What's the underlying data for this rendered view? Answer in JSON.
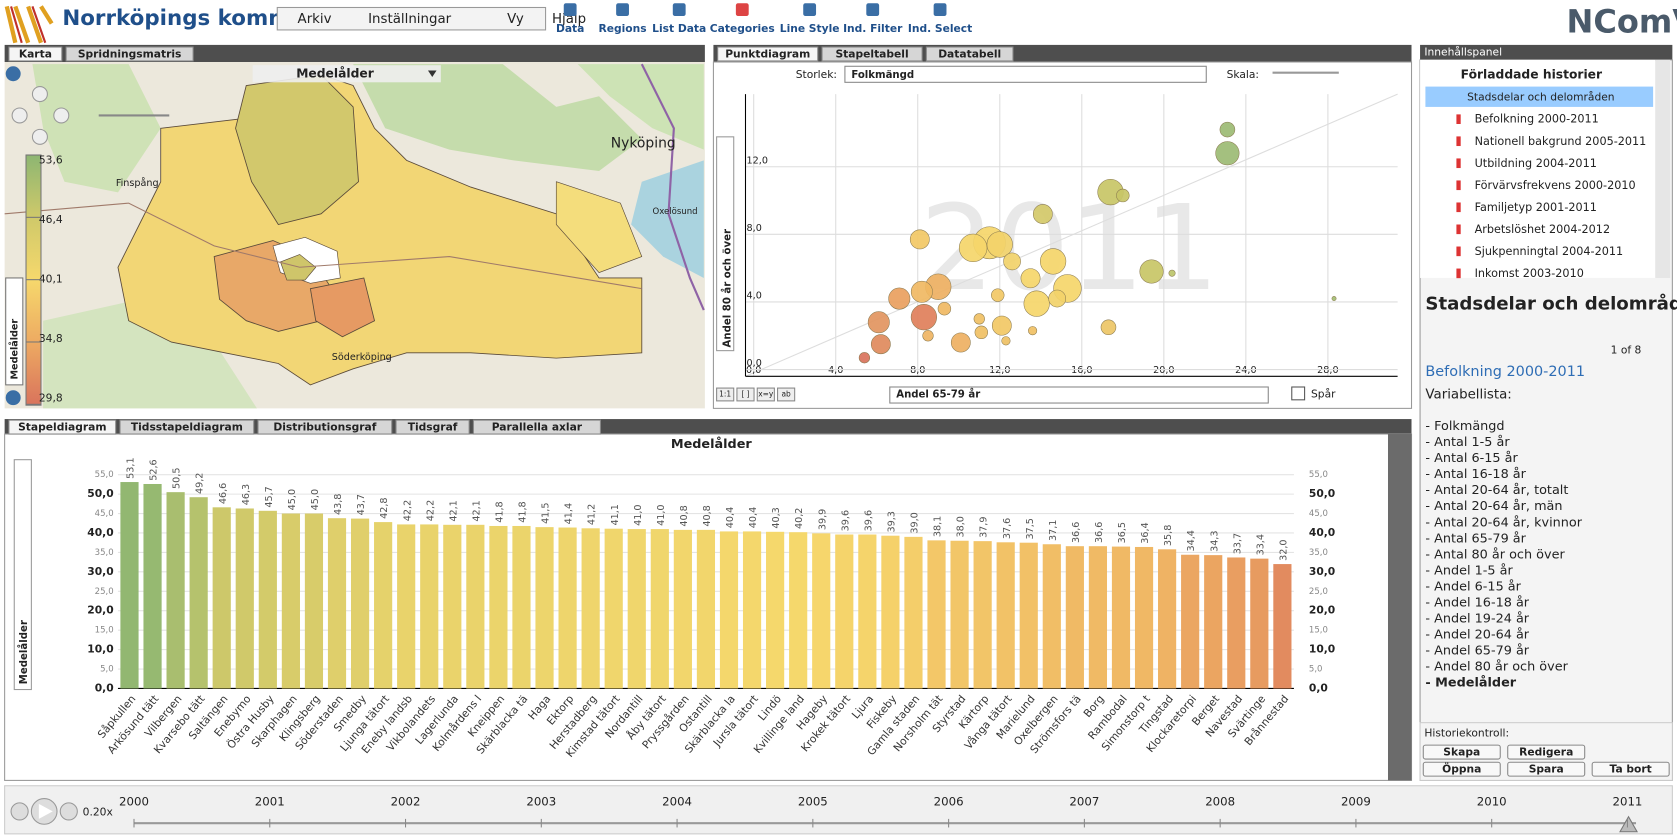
{
  "header": {
    "title": "Norrköpings kommun",
    "menu": [
      "Arkiv",
      "Inställningar",
      "Vy",
      "Hjälp"
    ],
    "toolbar": [
      "Data",
      "Regions",
      "List Data",
      "Categories",
      "Line Style",
      "Ind. Filter",
      "Ind. Select"
    ],
    "logo": "NComVA"
  },
  "map_panel": {
    "tabs": [
      "Karta",
      "Spridningsmatris"
    ],
    "variable": "Medelålder",
    "legend_title": "Medelålder",
    "places": [
      "Nyköping",
      "Finspång",
      "Oxelösund",
      "Söderköping"
    ],
    "legend": [
      {
        "value": 53.6,
        "label": "53,6",
        "color": "#8db672"
      },
      {
        "value": 46.4,
        "label": "46,4",
        "color": "#cfc96a"
      },
      {
        "value": 40.1,
        "label": "40,1",
        "color": "#f6d86c"
      },
      {
        "value": 34.8,
        "label": "34,8",
        "color": "#edaa62"
      },
      {
        "value": 29.8,
        "label": "29,8",
        "color": "#d9735c"
      }
    ]
  },
  "scatter_panel": {
    "tabs": [
      "Punktdiagram",
      "Stapeltabell",
      "Datatabell"
    ],
    "size_label": "Storlek:",
    "size_variable": "Folkmängd",
    "scale_label": "Skala:",
    "watermark": "2011",
    "trace_label": "Spår",
    "buttons": [
      "1:1",
      "[ ]",
      "x=y",
      "ab"
    ]
  },
  "bar_panel": {
    "tabs": [
      "Stapeldiagram",
      "Tidsstapeldiagram",
      "Distributionsgraf",
      "Tidsgraf",
      "Parallella axlar"
    ],
    "side_label": "Medelålder"
  },
  "chart_data": [
    {
      "type": "scatter",
      "x_label": "Andel 65-79 år",
      "y_label": "Andel 80 år och över",
      "xlim": [
        -0.4,
        31.4
      ],
      "ylim": [
        -0.4,
        16.3
      ],
      "xticks": [
        {
          "value": 0,
          "label": "0,0"
        },
        {
          "value": 4,
          "label": "4,0"
        },
        {
          "value": 8,
          "label": "8,0"
        },
        {
          "value": 12,
          "label": "12,0"
        },
        {
          "value": 16,
          "label": "16,0"
        },
        {
          "value": 20,
          "label": "20,0"
        },
        {
          "value": 24,
          "label": "24,0"
        },
        {
          "value": 28,
          "label": "28,0"
        }
      ],
      "yticks": [
        {
          "value": 0,
          "label": "0,0"
        },
        {
          "value": 4,
          "label": "4,0"
        },
        {
          "value": 8,
          "label": "8,0"
        },
        {
          "value": 12,
          "label": "12,0"
        }
      ],
      "grid": true,
      "x": [
        23.1,
        23.1,
        17.4,
        18.0,
        19.4,
        20.4,
        28.3,
        14.1,
        11.5,
        10.7,
        12.0,
        14.6,
        13.5,
        12.6,
        15.3,
        13.8,
        14.8,
        17.3,
        12.1,
        11.9,
        8.1,
        9.0,
        8.2,
        7.1,
        9.3,
        8.3,
        6.1,
        6.2,
        10.1,
        8.5,
        11.0,
        11.1,
        5.4,
        13.6,
        12.3
      ],
      "y": [
        14.2,
        12.8,
        10.5,
        10.3,
        5.8,
        5.7,
        4.2,
        9.2,
        7.5,
        7.2,
        7.4,
        6.4,
        5.4,
        6.4,
        4.8,
        3.9,
        4.2,
        2.5,
        2.6,
        4.4,
        7.7,
        4.9,
        4.6,
        4.2,
        3.6,
        3.1,
        2.8,
        1.5,
        1.6,
        2.0,
        3.0,
        2.2,
        0.7,
        2.3,
        1.7
      ],
      "sizes": [
        980,
        2420,
        2880,
        720,
        2420,
        180,
        80,
        1620,
        4500,
        3380,
        2880,
        2880,
        1620,
        1280,
        3380,
        2880,
        1280,
        980,
        1620,
        720,
        1620,
        2880,
        2000,
        2000,
        720,
        2880,
        2000,
        1620,
        1620,
        500,
        500,
        720,
        500,
        320,
        320
      ],
      "colors": [
        "#9cbb74",
        "#9cbb74",
        "#c8c566",
        "#c8c566",
        "#c8c566",
        "#bcc46a",
        "#a3bd72",
        "#d4c969",
        "#f5d66a",
        "#f5d66a",
        "#f2d26a",
        "#f5d66a",
        "#f5d66a",
        "#f2d26a",
        "#f5d66a",
        "#f5d66a",
        "#f2d26a",
        "#edc566",
        "#f2c865",
        "#f2c865",
        "#f2c865",
        "#eeb062",
        "#f0b863",
        "#e9a05e",
        "#f0b863",
        "#df7f5a",
        "#e29560",
        "#e08a5c",
        "#eeb062",
        "#efb463",
        "#f0c064",
        "#f0c064",
        "#d9735c",
        "#f0c064",
        "#eec064"
      ]
    },
    {
      "type": "bar",
      "title": "Medelålder",
      "ylim": [
        0,
        55
      ],
      "yticks": [
        {
          "value": 0,
          "label": "0,0"
        },
        {
          "value": 5,
          "label": "5,0"
        },
        {
          "value": 10,
          "label": "10,0"
        },
        {
          "value": 15,
          "label": "15,0"
        },
        {
          "value": 20,
          "label": "20,0"
        },
        {
          "value": 25,
          "label": "25,0"
        },
        {
          "value": 30,
          "label": "30,0"
        },
        {
          "value": 35,
          "label": "35,0"
        },
        {
          "value": 40,
          "label": "40,0"
        },
        {
          "value": 45,
          "label": "45,0"
        },
        {
          "value": 50,
          "label": "50,0"
        },
        {
          "value": 55,
          "label": "55,0"
        }
      ],
      "grid": true,
      "categories": [
        "Såpkullen",
        "Arkösund tätt",
        "Vilbergen",
        "Kvarsebo tätt",
        "Saltängen",
        "Enebymo",
        "Östra Husby",
        "Skarphagen",
        "Klingsberg",
        "Söderstaden",
        "Smedby",
        "Ljunga tätort",
        "Eneby landsb",
        "Vikbolandets",
        "Lagerlunda",
        "Kolmårdens l",
        "Kneippen",
        "Skärblacka tä",
        "Haga",
        "Ektorp",
        "Herstadberg",
        "Kimstad tätort",
        "Nordantill",
        "Åby tätort",
        "Pryssgården",
        "Ostantill",
        "Skärblacka la",
        "Jursla tätort",
        "Lindö",
        "Kvillinge land",
        "Hageby",
        "Krokek tätort",
        "Ljura",
        "Fiskeby",
        "Gamla staden",
        "Norsholm tät",
        "Styrstad",
        "Kärtorp",
        "Vånga tätort",
        "Marielund",
        "Oxelbergen",
        "Strömsfors tä",
        "Borg",
        "Rambodal",
        "Simonstorp t",
        "Tingstad",
        "Klockaretorpi",
        "Berget",
        "Navestad",
        "Svärtinge",
        "Brånnestad"
      ],
      "values": [
        53.1,
        52.6,
        50.5,
        49.2,
        46.6,
        46.3,
        45.7,
        45.0,
        45.0,
        43.8,
        43.7,
        42.8,
        42.2,
        42.2,
        42.1,
        42.1,
        41.8,
        41.8,
        41.5,
        41.4,
        41.2,
        41.1,
        41.0,
        41.0,
        40.8,
        40.8,
        40.4,
        40.4,
        40.3,
        40.2,
        39.9,
        39.6,
        39.6,
        39.3,
        39.0,
        38.1,
        38.0,
        37.9,
        37.6,
        37.5,
        37.1,
        36.6,
        36.6,
        36.5,
        36.4,
        35.8,
        34.4,
        34.3,
        33.7,
        33.4,
        32.0
      ],
      "value_labels": [
        "53,1",
        "52,6",
        "50,5",
        "49,2",
        "46,6",
        "46,3",
        "45,7",
        "45,0",
        "45,0",
        "43,8",
        "43,7",
        "42,8",
        "42,2",
        "42,2",
        "42,1",
        "42,1",
        "41,8",
        "41,8",
        "41,5",
        "41,4",
        "41,2",
        "41,1",
        "41,0",
        "41,0",
        "40,8",
        "40,8",
        "40,4",
        "40,4",
        "40,3",
        "40,2",
        "39,9",
        "39,6",
        "39,6",
        "39,3",
        "39,0",
        "38,1",
        "38,0",
        "37,9",
        "37,6",
        "37,5",
        "37,1",
        "36,6",
        "36,6",
        "36,5",
        "36,4",
        "35,8",
        "34,4",
        "34,3",
        "33,7",
        "33,4",
        "32,0"
      ]
    }
  ],
  "side_panel": {
    "header": "Innehållspanel",
    "root": "Förladdade historier",
    "folder": "Stadsdelar och delområden",
    "stories": [
      "Befolkning 2000-2011",
      "Nationell bakgrund 2005-2011",
      "Utbildning 2004-2011",
      "Förvärvsfrekvens 2000-2010",
      "Familjetyp 2001-2011",
      "Arbetslöshet 2004-2012",
      "Sjukpenningtal 2004-2011",
      "Inkomst 2003-2010"
    ],
    "story_title": "Stadsdelar och delområden",
    "pager": "1 of 8",
    "story_link": "Befolkning 2000-2011",
    "variables_title": "Variabellista:",
    "variables": [
      "- Folkmängd",
      "- Antal 1-5 år",
      "- Antal 6-15 år",
      "- Antal 16-18 år",
      "- Antal 20-64 år, totalt",
      "- Antal 20-64 år, män",
      "- Antal 20-64 år, kvinnor",
      "- Antal 65-79 år",
      "- Antal 80 år och över",
      "- Andel 1-5 år",
      "- Andel 6-15 år",
      "- Andel 16-18 år",
      "- Andel 19-24 år",
      "- Andel 20-64 år",
      "- Andel 65-79 år",
      "- Andel 80 år och över",
      "- Medelålder"
    ],
    "history_title": "Historiekontroll:",
    "buttons": [
      "Skapa",
      "Redigera",
      "Öppna",
      "Spara",
      "Ta bort"
    ]
  },
  "timeline": {
    "speed": "0.20x",
    "years": [
      "2000",
      "2001",
      "2002",
      "2003",
      "2004",
      "2005",
      "2006",
      "2007",
      "2008",
      "2009",
      "2010",
      "2011"
    ]
  }
}
